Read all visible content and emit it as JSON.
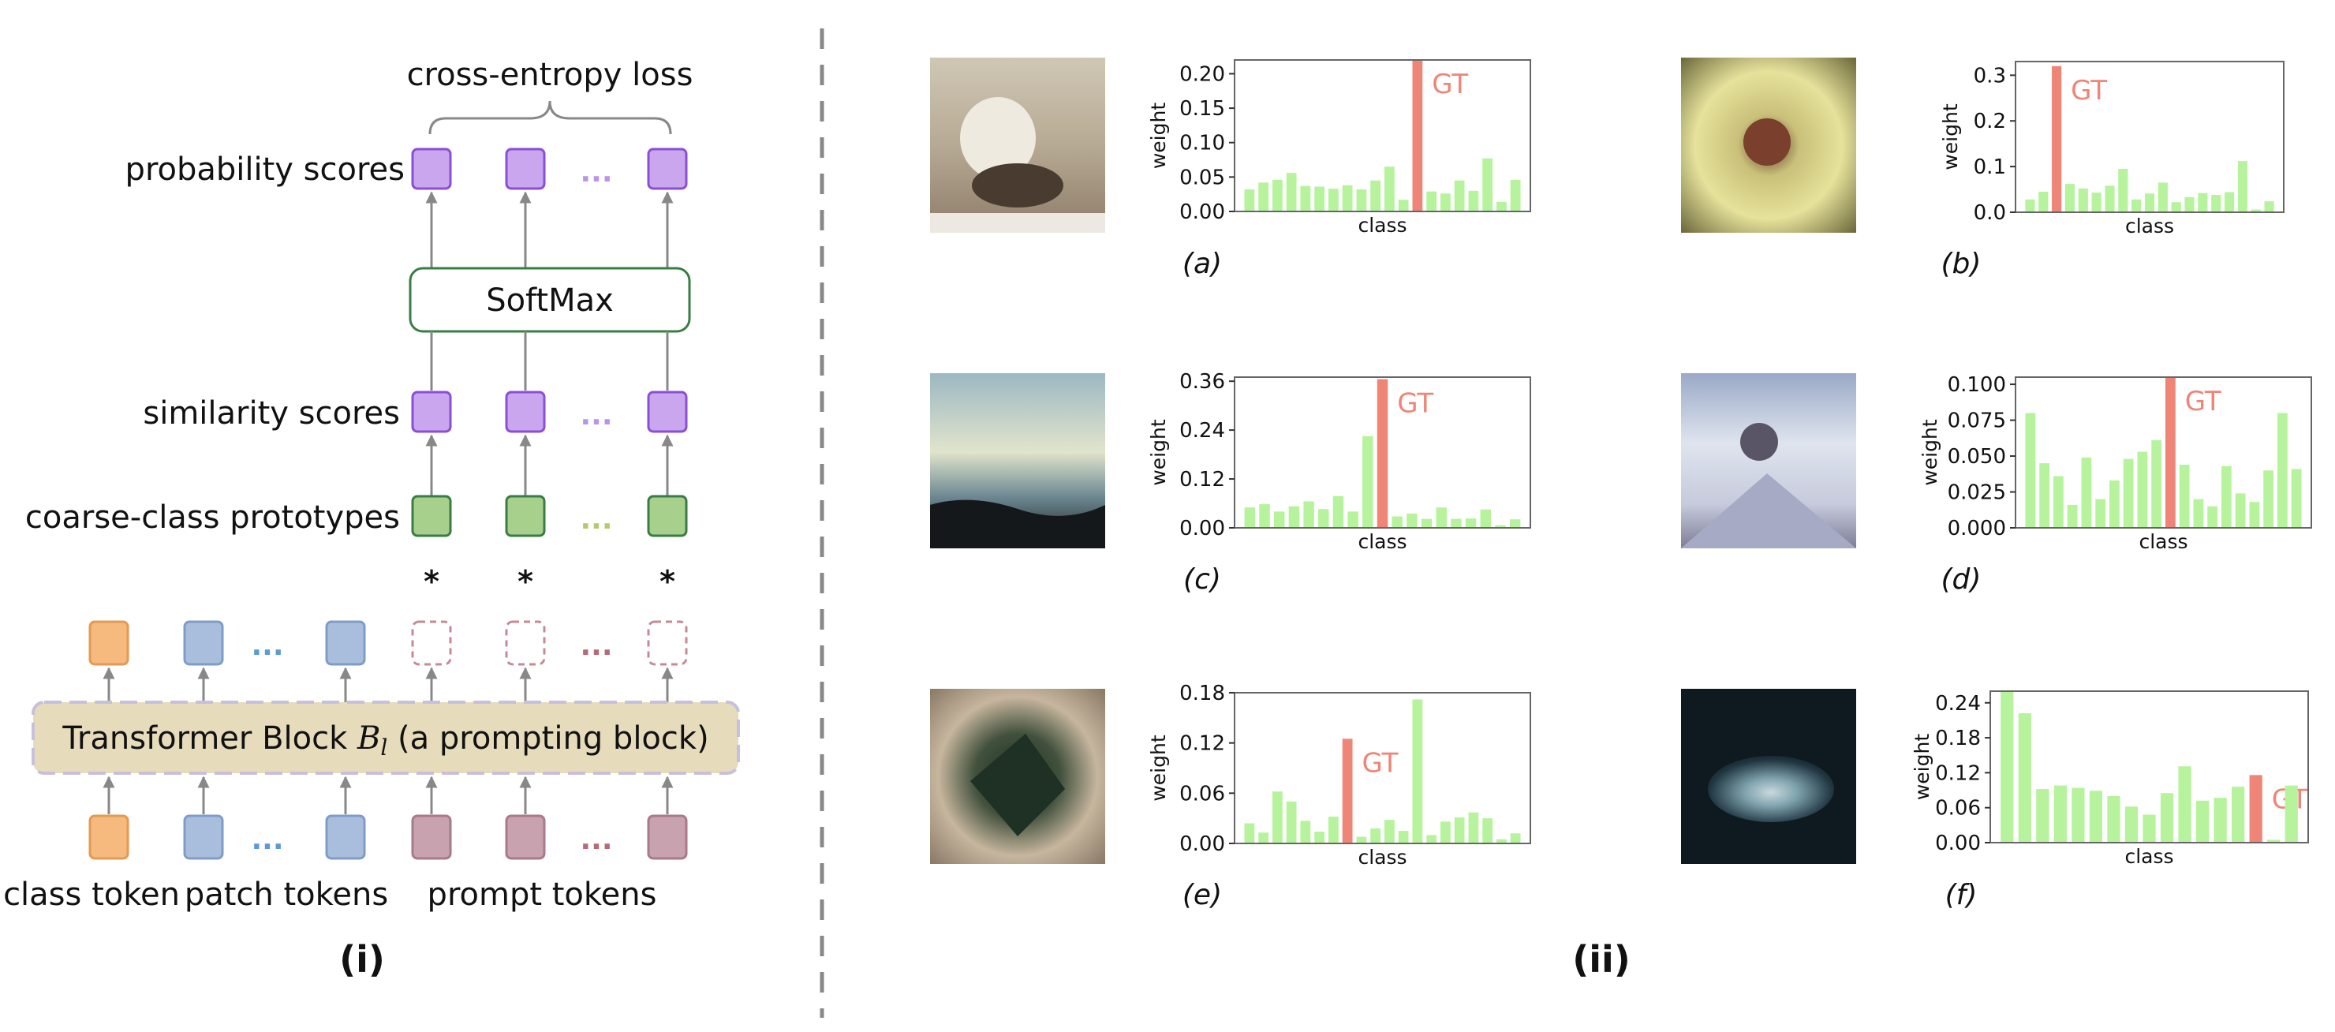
{
  "panel_i": {
    "label": "(i)",
    "loss_label": "cross-entropy loss",
    "row_labels": {
      "probability": "probability scores",
      "similarity": "similarity scores",
      "prototypes": "coarse-class prototypes"
    },
    "softmax_label": "SoftMax",
    "transformer_label_pre": "Transformer Block ",
    "transformer_label_var": "B",
    "transformer_label_sub": "l",
    "transformer_label_post": " (a prompting block)",
    "token_labels": {
      "class": "class token",
      "patch": "patch tokens",
      "prompt": "prompt tokens"
    },
    "ellipsis": "...",
    "multiply_symbol": "*",
    "colors": {
      "purple_fill": "#c9a6ee",
      "purple_stroke": "#8a4fd6",
      "green_fill": "#a8d08d",
      "green_stroke": "#3a7d44",
      "orange_fill": "#f6b97e",
      "orange_stroke": "#e39a52",
      "blue_fill": "#a9bedc",
      "blue_stroke": "#7f9cc8",
      "mauve_fill": "#c8a2ae",
      "mauve_stroke": "#a97a88",
      "prompt_dashed": "#c48b96",
      "block_fill": "#e6dcbc",
      "block_stroke": "#c6c0dc",
      "softmax_stroke": "#3a7d44"
    }
  },
  "panel_ii": {
    "label": "(ii)",
    "gt_label": "GT",
    "xlabel": "class",
    "ylabel": "weight"
  },
  "chart_data": [
    {
      "type": "bar",
      "subfigure": "(a)",
      "xlabel": "class",
      "ylabel": "weight",
      "ylim": [
        0,
        0.22
      ],
      "yticks": [
        "0.00",
        "0.05",
        "0.10",
        "0.15",
        "0.20"
      ],
      "ytick_values": [
        0,
        0.05,
        0.1,
        0.15,
        0.2
      ],
      "values": [
        0.032,
        0.042,
        0.046,
        0.056,
        0.037,
        0.036,
        0.033,
        0.038,
        0.032,
        0.045,
        0.065,
        0.017,
        0.22,
        0.029,
        0.026,
        0.045,
        0.03,
        0.077,
        0.014,
        0.046
      ],
      "gt_index": 12,
      "colors": {
        "bar": "#b6f39c",
        "gt": "#ee8577"
      }
    },
    {
      "type": "bar",
      "subfigure": "(b)",
      "xlabel": "class",
      "ylabel": "weight",
      "ylim": [
        0,
        0.33
      ],
      "yticks": [
        "0.0",
        "0.1",
        "0.2",
        "0.3"
      ],
      "ytick_values": [
        0,
        0.1,
        0.2,
        0.3
      ],
      "values": [
        0.028,
        0.045,
        0.32,
        0.062,
        0.052,
        0.043,
        0.058,
        0.095,
        0.028,
        0.041,
        0.065,
        0.022,
        0.033,
        0.042,
        0.038,
        0.044,
        0.112,
        0.006,
        0.024
      ],
      "gt_index": 2,
      "colors": {
        "bar": "#b6f39c",
        "gt": "#ee8577"
      }
    },
    {
      "type": "bar",
      "subfigure": "(c)",
      "xlabel": "class",
      "ylabel": "weight",
      "ylim": [
        0,
        0.37
      ],
      "yticks": [
        "0.00",
        "0.12",
        "0.24",
        "0.36"
      ],
      "ytick_values": [
        0,
        0.12,
        0.24,
        0.36
      ],
      "values": [
        0.05,
        0.058,
        0.04,
        0.053,
        0.065,
        0.046,
        0.078,
        0.04,
        0.225,
        0.365,
        0.028,
        0.035,
        0.022,
        0.05,
        0.022,
        0.023,
        0.045,
        0.006,
        0.021
      ],
      "gt_index": 9,
      "colors": {
        "bar": "#b6f39c",
        "gt": "#ee8577"
      }
    },
    {
      "type": "bar",
      "subfigure": "(d)",
      "xlabel": "class",
      "ylabel": "weight",
      "ylim": [
        0,
        0.105
      ],
      "yticks": [
        "0.000",
        "0.025",
        "0.050",
        "0.075",
        "0.100"
      ],
      "ytick_values": [
        0,
        0.025,
        0.05,
        0.075,
        0.1
      ],
      "values": [
        0.08,
        0.045,
        0.036,
        0.016,
        0.049,
        0.02,
        0.033,
        0.048,
        0.053,
        0.061,
        0.105,
        0.044,
        0.02,
        0.015,
        0.043,
        0.024,
        0.018,
        0.04,
        0.08,
        0.041
      ],
      "gt_index": 10,
      "colors": {
        "bar": "#b6f39c",
        "gt": "#ee8577"
      }
    },
    {
      "type": "bar",
      "subfigure": "(e)",
      "xlabel": "class",
      "ylabel": "weight",
      "ylim": [
        0,
        0.18
      ],
      "yticks": [
        "0.00",
        "0.06",
        "0.12",
        "0.18"
      ],
      "ytick_values": [
        0,
        0.06,
        0.12,
        0.18
      ],
      "values": [
        0.024,
        0.013,
        0.062,
        0.05,
        0.027,
        0.014,
        0.032,
        0.125,
        0.008,
        0.018,
        0.028,
        0.015,
        0.172,
        0.01,
        0.026,
        0.031,
        0.037,
        0.03,
        0.005,
        0.012
      ],
      "gt_index": 7,
      "colors": {
        "bar": "#b6f39c",
        "gt": "#ee8577"
      }
    },
    {
      "type": "bar",
      "subfigure": "(f)",
      "xlabel": "class",
      "ylabel": "weight",
      "ylim": [
        0,
        0.26
      ],
      "yticks": [
        "0.00",
        "0.06",
        "0.12",
        "0.18",
        "0.24"
      ],
      "ytick_values": [
        0,
        0.06,
        0.12,
        0.18,
        0.24
      ],
      "values": [
        0.26,
        0.222,
        0.092,
        0.098,
        0.094,
        0.089,
        0.08,
        0.062,
        0.048,
        0.085,
        0.131,
        0.072,
        0.077,
        0.096,
        0.116,
        0.005,
        0.098
      ],
      "gt_index": 14,
      "colors": {
        "bar": "#b6f39c",
        "gt": "#ee8577"
      }
    }
  ]
}
